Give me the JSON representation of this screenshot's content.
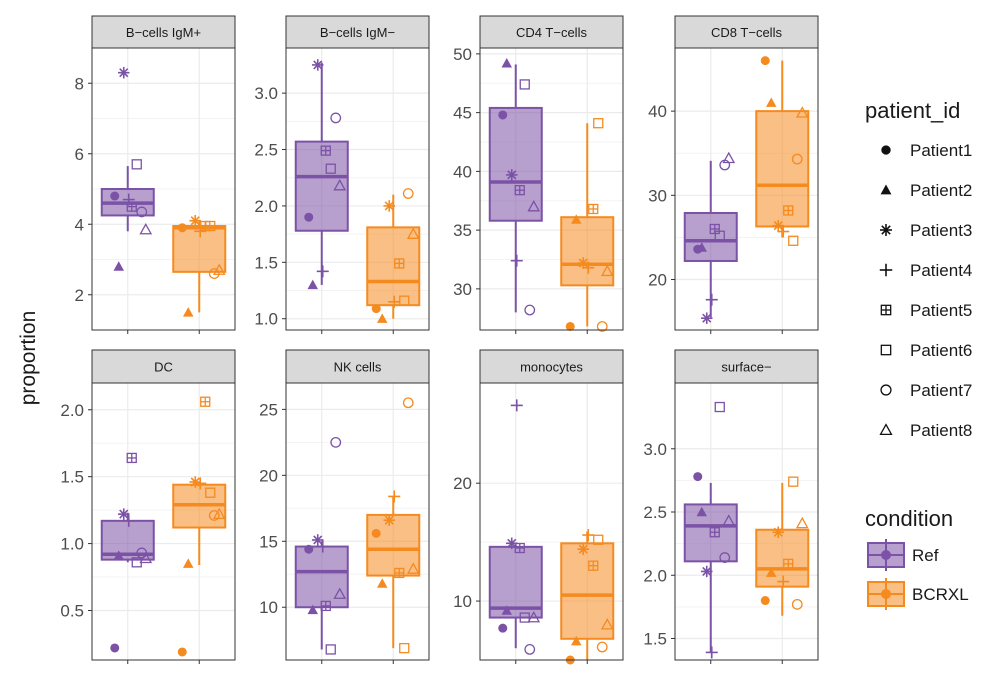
{
  "colors": {
    "Ref": "#7b52a6",
    "BCRXL": "#f58a1f",
    "strip": "#d9d9d9",
    "grid": "#ebebeb"
  },
  "chart_data": {
    "type": "boxplot",
    "ylabel": "proportion",
    "conditions": [
      "Ref",
      "BCRXL"
    ],
    "patients": [
      "Patient1",
      "Patient2",
      "Patient3",
      "Patient4",
      "Patient5",
      "Patient6",
      "Patient7",
      "Patient8"
    ],
    "legend": {
      "patient_title": "patient_id",
      "condition_title": "condition",
      "position": "right",
      "patient_shapes": [
        "circle",
        "triangle",
        "asterisk",
        "plus",
        "boxplus",
        "square",
        "open-circle",
        "open-triangle"
      ]
    },
    "grid": true,
    "panels": [
      {
        "title": "B−cells IgM+",
        "ylim": [
          1.0,
          9.0
        ],
        "yticks": [
          2,
          4,
          6,
          8
        ],
        "ytick_labels": [
          "2",
          "4",
          "6",
          "8"
        ],
        "boxes": {
          "Ref": {
            "min": 3.8,
            "q1": 4.25,
            "median": 4.6,
            "q3": 5.0,
            "max": 5.65
          },
          "BCRXL": {
            "min": 1.5,
            "q1": 2.65,
            "median": 3.9,
            "q3": 3.95,
            "max": 4.1
          }
        },
        "points": {
          "Ref": [
            4.8,
            2.8,
            8.3,
            4.7,
            4.5,
            5.7,
            4.35,
            3.85
          ],
          "BCRXL": [
            3.9,
            1.5,
            4.1,
            3.8,
            3.95,
            3.95,
            2.6,
            2.7
          ]
        }
      },
      {
        "title": "B−cells IgM−",
        "ylim": [
          0.9,
          3.4
        ],
        "yticks": [
          1.0,
          1.5,
          2.0,
          2.5,
          3.0
        ],
        "ytick_labels": [
          "1.0",
          "1.5",
          "2.0",
          "2.5",
          "3.0"
        ],
        "boxes": {
          "Ref": {
            "min": 1.3,
            "q1": 1.78,
            "median": 2.26,
            "q3": 2.57,
            "max": 3.27
          },
          "BCRXL": {
            "min": 1.0,
            "q1": 1.12,
            "median": 1.33,
            "q3": 1.81,
            "max": 2.1
          }
        },
        "points": {
          "Ref": [
            1.9,
            1.3,
            3.25,
            1.42,
            2.49,
            2.33,
            2.78,
            2.18
          ],
          "BCRXL": [
            1.09,
            1.0,
            2.0,
            1.15,
            1.49,
            1.16,
            2.11,
            1.75
          ]
        }
      },
      {
        "title": "CD4 T−cells",
        "ylim": [
          26.5,
          50.5
        ],
        "yticks": [
          30,
          35,
          40,
          45,
          50
        ],
        "ytick_labels": [
          "30",
          "35",
          "40",
          "45",
          "50"
        ],
        "boxes": {
          "Ref": {
            "min": 28.0,
            "q1": 35.8,
            "median": 39.1,
            "q3": 45.4,
            "max": 49.1
          },
          "BCRXL": {
            "min": 26.8,
            "q1": 30.3,
            "median": 32.1,
            "q3": 36.1,
            "max": 44.1
          }
        },
        "points": {
          "Ref": [
            44.8,
            49.2,
            39.7,
            32.4,
            38.4,
            47.4,
            28.2,
            37.0
          ],
          "BCRXL": [
            26.8,
            35.9,
            32.2,
            31.8,
            36.8,
            44.1,
            26.8,
            31.5
          ]
        }
      },
      {
        "title": "CD8 T−cells",
        "ylim": [
          14.0,
          47.5
        ],
        "yticks": [
          20,
          30,
          40
        ],
        "ytick_labels": [
          "20",
          "30",
          "40"
        ],
        "boxes": {
          "Ref": {
            "min": 15.5,
            "q1": 22.2,
            "median": 24.6,
            "q3": 27.9,
            "max": 34.1
          },
          "BCRXL": {
            "min": 25.0,
            "q1": 26.3,
            "median": 31.2,
            "q3": 40.0,
            "max": 46.0
          }
        },
        "points": {
          "Ref": [
            23.6,
            23.8,
            15.4,
            17.6,
            26.0,
            25.2,
            33.6,
            34.4
          ],
          "BCRXL": [
            46.0,
            41.0,
            26.4,
            25.7,
            28.2,
            24.6,
            34.3,
            39.8
          ]
        }
      },
      {
        "title": "DC",
        "ylim": [
          0.13,
          2.2
        ],
        "yticks": [
          0.5,
          1.0,
          1.5,
          2.0
        ],
        "ytick_labels": [
          "0.5",
          "1.0",
          "1.5",
          "2.0"
        ],
        "boxes": {
          "Ref": {
            "min": 0.86,
            "q1": 0.88,
            "median": 0.92,
            "q3": 1.17,
            "max": 1.23
          },
          "BCRXL": {
            "min": 0.84,
            "q1": 1.12,
            "median": 1.29,
            "q3": 1.44,
            "max": 1.46
          }
        },
        "points": {
          "Ref": [
            0.22,
            0.91,
            1.22,
            1.17,
            1.64,
            0.86,
            0.93,
            0.89
          ],
          "BCRXL": [
            0.19,
            0.85,
            1.46,
            1.45,
            2.06,
            1.38,
            1.21,
            1.22
          ]
        }
      },
      {
        "title": "NK cells",
        "ylim": [
          6.0,
          27.0
        ],
        "yticks": [
          10,
          15,
          20,
          25
        ],
        "ytick_labels": [
          "10",
          "15",
          "20",
          "25"
        ],
        "boxes": {
          "Ref": {
            "min": 6.8,
            "q1": 10.0,
            "median": 12.7,
            "q3": 14.6,
            "max": 15.0
          },
          "BCRXL": {
            "min": 6.9,
            "q1": 12.4,
            "median": 14.4,
            "q3": 17.0,
            "max": 18.4
          }
        },
        "points": {
          "Ref": [
            14.4,
            9.8,
            15.1,
            14.6,
            10.1,
            6.8,
            22.5,
            11.0
          ],
          "BCRXL": [
            15.6,
            11.8,
            16.6,
            18.4,
            12.6,
            6.9,
            25.5,
            12.9
          ]
        }
      },
      {
        "title": "monocytes",
        "ylim": [
          5.0,
          28.5
        ],
        "yticks": [
          10,
          20
        ],
        "ytick_labels": [
          "10",
          "20"
        ],
        "boxes": {
          "Ref": {
            "min": 6.0,
            "q1": 8.6,
            "median": 9.4,
            "q3": 14.6,
            "max": 14.8
          },
          "BCRXL": {
            "min": 5.0,
            "q1": 6.8,
            "median": 10.5,
            "q3": 14.9,
            "max": 15.9
          }
        },
        "points": {
          "Ref": [
            7.7,
            9.2,
            14.9,
            26.6,
            14.5,
            8.6,
            5.9,
            8.6
          ],
          "BCRXL": [
            5.0,
            6.6,
            14.4,
            15.6,
            13.0,
            15.2,
            6.1,
            8.0
          ]
        }
      },
      {
        "title": "surface−",
        "ylim": [
          1.33,
          3.52
        ],
        "yticks": [
          1.5,
          2.0,
          2.5,
          3.0
        ],
        "ytick_labels": [
          "1.5",
          "2.0",
          "2.5",
          "3.0"
        ],
        "boxes": {
          "Ref": {
            "min": 1.39,
            "q1": 2.11,
            "median": 2.39,
            "q3": 2.56,
            "max": 2.73
          },
          "BCRXL": {
            "min": 1.68,
            "q1": 1.91,
            "median": 2.05,
            "q3": 2.36,
            "max": 2.73
          }
        },
        "points": {
          "Ref": [
            2.78,
            2.5,
            2.03,
            1.39,
            2.34,
            3.33,
            2.14,
            2.43
          ],
          "BCRXL": [
            1.8,
            2.02,
            2.34,
            1.95,
            2.09,
            2.74,
            1.77,
            2.41
          ]
        }
      }
    ]
  }
}
